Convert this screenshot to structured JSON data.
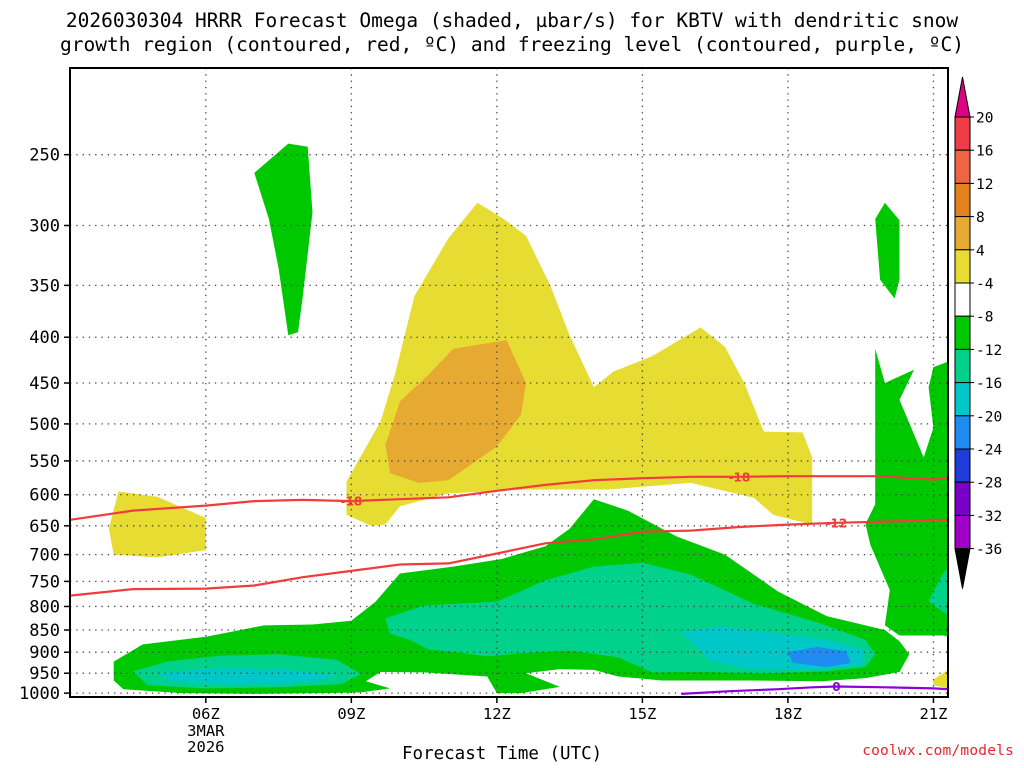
{
  "title": {
    "line1": "2026030304 HRRR Forecast Omega (shaded, µbar/s) for KBTV with dendritic snow",
    "line2": "growth region (contoured, red, ºC) and freezing level (contoured, purple, ºC)"
  },
  "credit": "coolwx.com/models",
  "chart_data": {
    "type": "heatmap",
    "title": "2026030304 HRRR Forecast Omega (shaded, µbar/s) for KBTV with dendritic snow growth region (contoured, red, ºC) and freezing level (contoured, purple, ºC)",
    "xlabel": "Forecast Time (UTC)",
    "ylabel": "",
    "x_range_hours": [
      3.2,
      21.3
    ],
    "y_range_hpa": [
      200,
      1010
    ],
    "x_ticks": [
      {
        "hour": 6,
        "label": "06Z",
        "sub": [
          "3MAR",
          "2026"
        ]
      },
      {
        "hour": 9,
        "label": "09Z",
        "sub": []
      },
      {
        "hour": 12,
        "label": "12Z",
        "sub": []
      },
      {
        "hour": 15,
        "label": "15Z",
        "sub": []
      },
      {
        "hour": 18,
        "label": "18Z",
        "sub": []
      },
      {
        "hour": 21,
        "label": "21Z",
        "sub": []
      }
    ],
    "y_ticks": [
      250,
      300,
      350,
      400,
      450,
      500,
      550,
      600,
      650,
      700,
      750,
      800,
      850,
      900,
      950,
      1000
    ],
    "colorbar": {
      "labels": [
        "20",
        "16",
        "12",
        "8",
        "4",
        "-4",
        "-8",
        "-12",
        "-16",
        "-20",
        "-24",
        "-28",
        "-32",
        "-36"
      ],
      "colors": [
        "#f03c46",
        "#f06446",
        "#e6821e",
        "#e6aa32",
        "#e6dc32",
        "#ffffff",
        "#00c800",
        "#00d28c",
        "#00c8c8",
        "#1e8cf0",
        "#1e3cdc",
        "#7800c8",
        "#a000c8",
        "#a0a0a0"
      ],
      "above_max_color": "#dc0082",
      "below_min_color": "#000000"
    },
    "omega_regions": [
      {
        "value_bin": "4 to 8",
        "color": "#e6dc32",
        "points": [
          [
            9.4,
            650
          ],
          [
            8.9,
            632
          ],
          [
            8.9,
            580
          ],
          [
            9.6,
            497
          ],
          [
            9.9,
            440
          ],
          [
            10.3,
            360
          ],
          [
            11.0,
            310
          ],
          [
            11.6,
            283
          ],
          [
            12.1,
            294
          ],
          [
            12.6,
            308
          ],
          [
            13.1,
            350
          ],
          [
            13.5,
            398
          ],
          [
            14.0,
            455
          ],
          [
            14.4,
            437
          ],
          [
            15.2,
            420
          ],
          [
            16.2,
            390
          ],
          [
            16.7,
            410
          ],
          [
            17.1,
            450
          ],
          [
            17.5,
            510
          ],
          [
            18.3,
            511
          ],
          [
            18.5,
            545
          ],
          [
            18.5,
            648
          ],
          [
            17.7,
            632
          ],
          [
            17.3,
            605
          ],
          [
            16.0,
            582
          ],
          [
            14.3,
            592
          ],
          [
            12.6,
            592
          ],
          [
            11.0,
            598
          ],
          [
            10.0,
            618
          ],
          [
            9.7,
            648
          ]
        ]
      },
      {
        "value_bin": "4 to 8",
        "color": "#e6dc32",
        "points": [
          [
            4.1,
            700
          ],
          [
            4.0,
            655
          ],
          [
            4.2,
            595
          ],
          [
            5.0,
            603
          ],
          [
            6.0,
            637
          ],
          [
            6.0,
            692
          ],
          [
            5.0,
            705
          ]
        ]
      },
      {
        "value_bin": "8 to 12",
        "color": "#e6aa32",
        "points": [
          [
            9.7,
            528
          ],
          [
            10.0,
            472
          ],
          [
            10.6,
            440
          ],
          [
            11.1,
            412
          ],
          [
            12.2,
            403
          ],
          [
            12.6,
            450
          ],
          [
            12.5,
            488
          ],
          [
            12.0,
            530
          ],
          [
            11.0,
            578
          ],
          [
            10.4,
            582
          ],
          [
            9.8,
            568
          ]
        ]
      },
      {
        "value_bin": "-4 to -8",
        "color": "#00c800",
        "points": [
          [
            4.1,
            922
          ],
          [
            4.7,
            882
          ],
          [
            6.0,
            865
          ],
          [
            7.2,
            840
          ],
          [
            8.2,
            838
          ],
          [
            9.0,
            830
          ],
          [
            9.5,
            790
          ],
          [
            10.0,
            735
          ],
          [
            11.1,
            722
          ],
          [
            12.1,
            708
          ],
          [
            13.0,
            685
          ],
          [
            13.5,
            655
          ],
          [
            14.0,
            607
          ],
          [
            14.7,
            625
          ],
          [
            15.7,
            668
          ],
          [
            16.7,
            700
          ],
          [
            17.8,
            770
          ],
          [
            18.8,
            820
          ],
          [
            20.0,
            850
          ],
          [
            20.3,
            875
          ],
          [
            20.5,
            905
          ],
          [
            20.3,
            947
          ],
          [
            19.6,
            962
          ],
          [
            18.7,
            970
          ],
          [
            17.2,
            968
          ],
          [
            15.4,
            968
          ],
          [
            14.5,
            958
          ],
          [
            14.0,
            942
          ],
          [
            13.3,
            940
          ],
          [
            12.6,
            950
          ],
          [
            13.3,
            984
          ],
          [
            12.5,
            1000
          ],
          [
            12.0,
            1000
          ],
          [
            11.8,
            958
          ],
          [
            10.5,
            948
          ],
          [
            9.6,
            947
          ],
          [
            9.3,
            970
          ],
          [
            9.8,
            988
          ],
          [
            9.2,
            998
          ],
          [
            8.5,
            1000
          ],
          [
            7.0,
            1002
          ],
          [
            5.5,
            1000
          ],
          [
            4.3,
            990
          ],
          [
            4.1,
            968
          ]
        ]
      },
      {
        "value_bin": "-8 to -12",
        "color": "#00d28c",
        "points": [
          [
            4.5,
            945
          ],
          [
            5.2,
            922
          ],
          [
            6.3,
            908
          ],
          [
            7.5,
            905
          ],
          [
            8.7,
            918
          ],
          [
            9.2,
            952
          ],
          [
            8.8,
            977
          ],
          [
            7.5,
            985
          ],
          [
            6.0,
            988
          ],
          [
            4.8,
            980
          ]
        ]
      },
      {
        "value_bin": "-8 to -12",
        "color": "#00d28c",
        "points": [
          [
            9.7,
            825
          ],
          [
            10.5,
            798
          ],
          [
            12.0,
            790
          ],
          [
            13.0,
            748
          ],
          [
            14.0,
            722
          ],
          [
            15.0,
            715
          ],
          [
            16.0,
            737
          ],
          [
            17.3,
            795
          ],
          [
            18.6,
            833
          ],
          [
            19.6,
            872
          ],
          [
            19.8,
            905
          ],
          [
            19.6,
            935
          ],
          [
            18.8,
            945
          ],
          [
            17.6,
            950
          ],
          [
            16.2,
            947
          ],
          [
            15.2,
            948
          ],
          [
            14.5,
            912
          ],
          [
            13.5,
            896
          ],
          [
            12.5,
            902
          ],
          [
            11.8,
            910
          ],
          [
            11.2,
            900
          ],
          [
            10.6,
            894
          ],
          [
            10.2,
            872
          ],
          [
            9.8,
            858
          ]
        ]
      },
      {
        "value_bin": "-12 to -16",
        "color": "#00c8c8",
        "points": [
          [
            5.0,
            952
          ],
          [
            6.0,
            938
          ],
          [
            7.5,
            940
          ],
          [
            8.7,
            955
          ],
          [
            8.2,
            972
          ],
          [
            6.5,
            978
          ],
          [
            5.3,
            970
          ]
        ]
      },
      {
        "value_bin": "-12 to -16",
        "color": "#00c8c8",
        "points": [
          [
            15.8,
            855
          ],
          [
            16.6,
            842
          ],
          [
            17.6,
            855
          ],
          [
            18.8,
            872
          ],
          [
            19.6,
            895
          ],
          [
            19.5,
            930
          ],
          [
            18.5,
            942
          ],
          [
            17.2,
            940
          ],
          [
            16.4,
            920
          ]
        ]
      },
      {
        "value_bin": "-16 to -20",
        "color": "#1e8cf0",
        "points": [
          [
            18.0,
            900
          ],
          [
            18.6,
            888
          ],
          [
            19.2,
            898
          ],
          [
            19.3,
            925
          ],
          [
            18.8,
            935
          ],
          [
            18.1,
            925
          ]
        ]
      },
      {
        "value_bin": "-4 to -8",
        "color": "#00c800",
        "points": [
          [
            7.0,
            262
          ],
          [
            7.7,
            243
          ],
          [
            8.1,
            245
          ],
          [
            8.2,
            290
          ],
          [
            8.0,
            360
          ],
          [
            7.9,
            395
          ],
          [
            7.7,
            398
          ],
          [
            7.5,
            335
          ],
          [
            7.3,
            295
          ]
        ]
      },
      {
        "value_bin": "-4 to -8",
        "color": "#00c800",
        "points": [
          [
            19.8,
            295
          ],
          [
            20.0,
            283
          ],
          [
            20.3,
            296
          ],
          [
            20.3,
            345
          ],
          [
            20.2,
            362
          ],
          [
            19.9,
            345
          ]
        ]
      },
      {
        "value_bin": "-4 to -8",
        "color": "#00c800",
        "points": [
          [
            19.8,
            412
          ],
          [
            20.0,
            450
          ],
          [
            20.6,
            435
          ],
          [
            20.3,
            470
          ],
          [
            20.8,
            545
          ],
          [
            21.0,
            505
          ],
          [
            20.9,
            455
          ],
          [
            21.0,
            432
          ],
          [
            21.5,
            422
          ],
          [
            21.9,
            405
          ],
          [
            21.9,
            878
          ],
          [
            21.2,
            862
          ],
          [
            20.3,
            862
          ],
          [
            20.0,
            840
          ],
          [
            20.1,
            767
          ],
          [
            19.7,
            683
          ],
          [
            19.6,
            647
          ],
          [
            19.8,
            615
          ],
          [
            19.8,
            550
          ]
        ]
      },
      {
        "value_bin": "-8 to -12",
        "color": "#00d28c",
        "points": [
          [
            21.2,
            735
          ],
          [
            21.6,
            695
          ],
          [
            21.9,
            672
          ],
          [
            21.9,
            820
          ],
          [
            21.3,
            818
          ],
          [
            20.9,
            790
          ],
          [
            21.0,
            770
          ]
        ]
      },
      {
        "value_bin": "-12 to -16",
        "color": "#00c8c8",
        "points": [
          [
            21.6,
            735
          ],
          [
            21.9,
            718
          ],
          [
            21.9,
            790
          ],
          [
            21.7,
            775
          ]
        ]
      },
      {
        "value_bin": "4 to 8",
        "color": "#e6dc32",
        "points": [
          [
            21.0,
            965
          ],
          [
            21.4,
            935
          ],
          [
            21.9,
            918
          ],
          [
            21.9,
            992
          ],
          [
            21.4,
            990
          ],
          [
            21.0,
            980
          ]
        ]
      },
      {
        "value_bin": "8 to 12",
        "color": "#e6aa32",
        "points": [
          [
            21.6,
            968
          ],
          [
            21.9,
            950
          ],
          [
            21.9,
            985
          ],
          [
            21.7,
            982
          ]
        ]
      }
    ],
    "contours": [
      {
        "name": "dgz-upper",
        "label": "-18",
        "color": "#f03c3c",
        "label_at_hour": [
          9.0,
          17.0
        ],
        "points": [
          [
            3.2,
            640
          ],
          [
            4.5,
            625
          ],
          [
            6.0,
            617
          ],
          [
            7.0,
            610
          ],
          [
            8.0,
            608
          ],
          [
            9.0,
            610
          ],
          [
            10.0,
            607
          ],
          [
            11.0,
            604
          ],
          [
            12.0,
            594
          ],
          [
            13.0,
            585
          ],
          [
            14.0,
            578
          ],
          [
            15.0,
            575
          ],
          [
            16.0,
            573
          ],
          [
            17.0,
            573
          ],
          [
            18.0,
            572
          ],
          [
            19.0,
            572
          ],
          [
            20.0,
            572
          ],
          [
            20.5,
            575
          ],
          [
            21.0,
            577
          ],
          [
            21.9,
            570
          ]
        ]
      },
      {
        "name": "dgz-lower",
        "label": "-12",
        "color": "#f03c3c",
        "label_at_hour": [
          19.0
        ],
        "points": [
          [
            3.2,
            778
          ],
          [
            4.5,
            765
          ],
          [
            6.0,
            764
          ],
          [
            7.0,
            758
          ],
          [
            8.0,
            742
          ],
          [
            9.0,
            730
          ],
          [
            10.0,
            718
          ],
          [
            11.0,
            716
          ],
          [
            12.0,
            698
          ],
          [
            13.0,
            680
          ],
          [
            14.0,
            673
          ],
          [
            15.0,
            660
          ],
          [
            16.0,
            658
          ],
          [
            17.0,
            652
          ],
          [
            18.0,
            648
          ],
          [
            19.0,
            645
          ],
          [
            20.0,
            643
          ],
          [
            20.5,
            642
          ],
          [
            21.0,
            640
          ],
          [
            21.9,
            640
          ]
        ]
      },
      {
        "name": "freezing-level",
        "label": "0",
        "color": "#8c00dc",
        "label_at_hour": [
          19.0
        ],
        "points": [
          [
            15.8,
            1002
          ],
          [
            16.8,
            995
          ],
          [
            17.8,
            990
          ],
          [
            18.5,
            985
          ],
          [
            19.0,
            983
          ],
          [
            20.0,
            985
          ],
          [
            21.0,
            988
          ],
          [
            21.9,
            994
          ]
        ]
      }
    ],
    "terrain": {
      "color": "#a0522d",
      "pressure_hpa": 1010
    }
  }
}
